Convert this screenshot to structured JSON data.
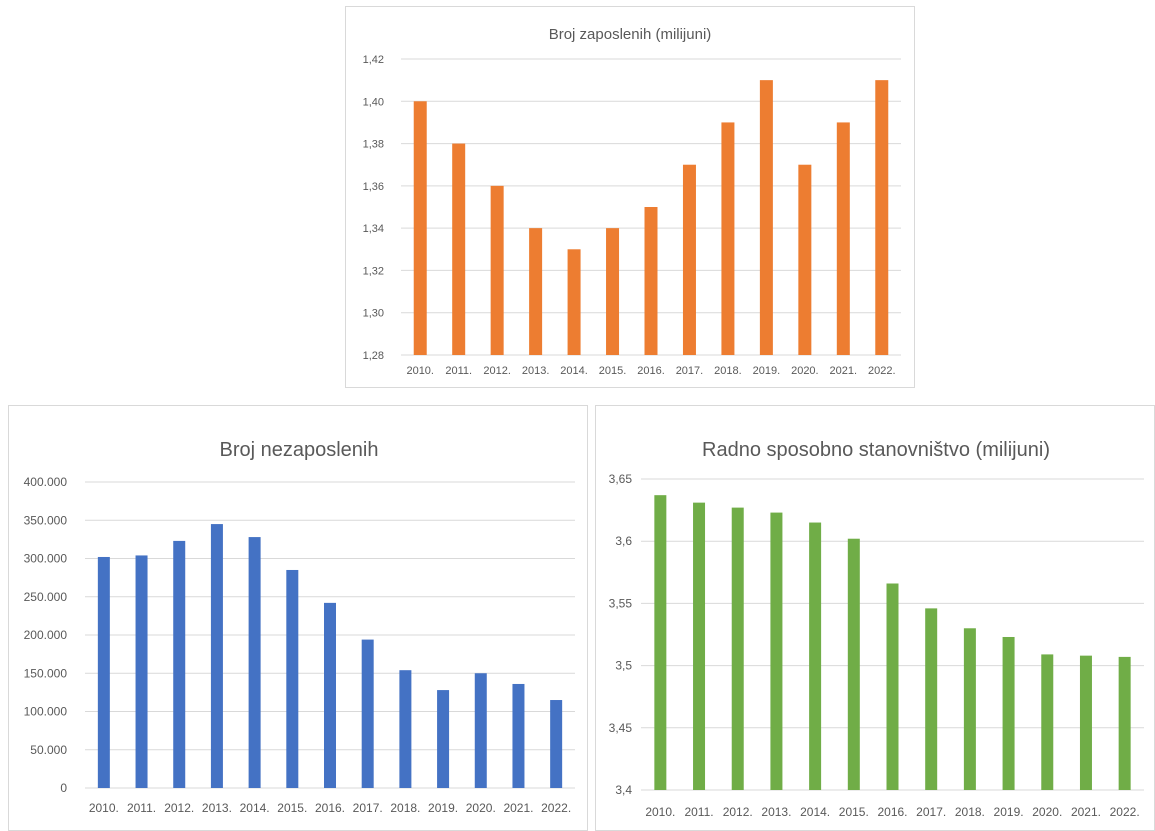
{
  "chart_data": [
    {
      "id": "employed",
      "type": "bar",
      "title": "Broj zaposlenih (milijuni)",
      "xlabel": "",
      "ylabel": "",
      "categories": [
        "2010.",
        "2011.",
        "2012.",
        "2013.",
        "2014.",
        "2015.",
        "2016.",
        "2017.",
        "2018.",
        "2019.",
        "2020.",
        "2021.",
        "2022."
      ],
      "values": [
        1.4,
        1.38,
        1.36,
        1.34,
        1.33,
        1.34,
        1.35,
        1.37,
        1.39,
        1.41,
        1.37,
        1.39,
        1.41
      ],
      "ylim": [
        1.28,
        1.42
      ],
      "yticks": [
        "1,28",
        "1,30",
        "1,32",
        "1,34",
        "1,36",
        "1,38",
        "1,40",
        "1,42"
      ],
      "grid": true,
      "legend": "none",
      "color": "#ED7D31"
    },
    {
      "id": "unemployed",
      "type": "bar",
      "title": "Broj nezaposlenih",
      "xlabel": "",
      "ylabel": "",
      "categories": [
        "2010.",
        "2011.",
        "2012.",
        "2013.",
        "2014.",
        "2015.",
        "2016.",
        "2017.",
        "2018.",
        "2019.",
        "2020.",
        "2021.",
        "2022."
      ],
      "values": [
        302000,
        304000,
        323000,
        345000,
        328000,
        285000,
        242000,
        194000,
        154000,
        128000,
        150000,
        136000,
        115000
      ],
      "ylim": [
        0,
        400000
      ],
      "yticks": [
        "0",
        "50.000",
        "100.000",
        "150.000",
        "200.000",
        "250.000",
        "300.000",
        "350.000",
        "400.000"
      ],
      "grid": true,
      "legend": "none",
      "color": "#4472C4"
    },
    {
      "id": "workingage",
      "type": "bar",
      "title": "Radno sposobno stanovništvo (milijuni)",
      "xlabel": "",
      "ylabel": "",
      "categories": [
        "2010.",
        "2011.",
        "2012.",
        "2013.",
        "2014.",
        "2015.",
        "2016.",
        "2017.",
        "2018.",
        "2019.",
        "2020.",
        "2021.",
        "2022."
      ],
      "values": [
        3.637,
        3.631,
        3.627,
        3.623,
        3.615,
        3.602,
        3.566,
        3.546,
        3.53,
        3.523,
        3.509,
        3.508,
        3.507
      ],
      "ylim": [
        3.4,
        3.65
      ],
      "yticks": [
        "3,4",
        "3,45",
        "3,5",
        "3,55",
        "3,6",
        "3,65"
      ],
      "grid": true,
      "legend": "none",
      "color": "#70AD47"
    }
  ]
}
